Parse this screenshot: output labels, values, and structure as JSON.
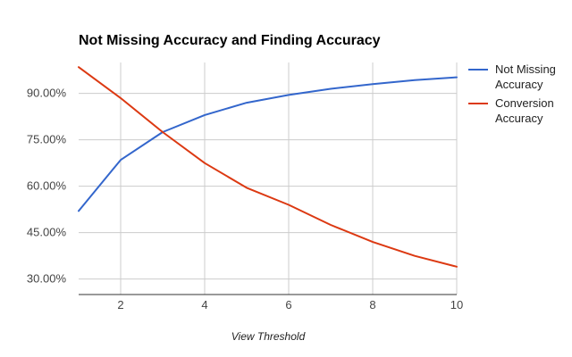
{
  "chart_data": {
    "type": "line",
    "title": "Not Missing Accuracy and Finding Accuracy",
    "xlabel": "View Threshold",
    "ylabel": "",
    "x": [
      1,
      2,
      3,
      4,
      5,
      6,
      7,
      8,
      9,
      10
    ],
    "xlim": [
      1,
      10
    ],
    "ylim": [
      0.25,
      1.0
    ],
    "x_ticks": [
      2,
      4,
      6,
      8,
      10
    ],
    "x_tick_labels": [
      "2",
      "4",
      "6",
      "8",
      "10"
    ],
    "y_ticks": [
      0.3,
      0.45,
      0.6,
      0.75,
      0.9
    ],
    "y_tick_labels": [
      "30.00%",
      "45.00%",
      "60.00%",
      "75.00%",
      "90.00%"
    ],
    "grid": true,
    "legend_position": "right",
    "series": [
      {
        "name": "Not Missing Accuracy",
        "legend_lines": [
          "Not Missing",
          "Accuracy"
        ],
        "color": "#3366cc",
        "values": [
          0.52,
          0.685,
          0.775,
          0.83,
          0.87,
          0.895,
          0.915,
          0.93,
          0.943,
          0.952
        ]
      },
      {
        "name": "Conversion Accuracy",
        "legend_lines": [
          "Conversion",
          "Accuracy"
        ],
        "color": "#dc3912",
        "values": [
          0.985,
          0.885,
          0.775,
          0.675,
          0.595,
          0.54,
          0.475,
          0.42,
          0.375,
          0.34
        ]
      }
    ]
  }
}
